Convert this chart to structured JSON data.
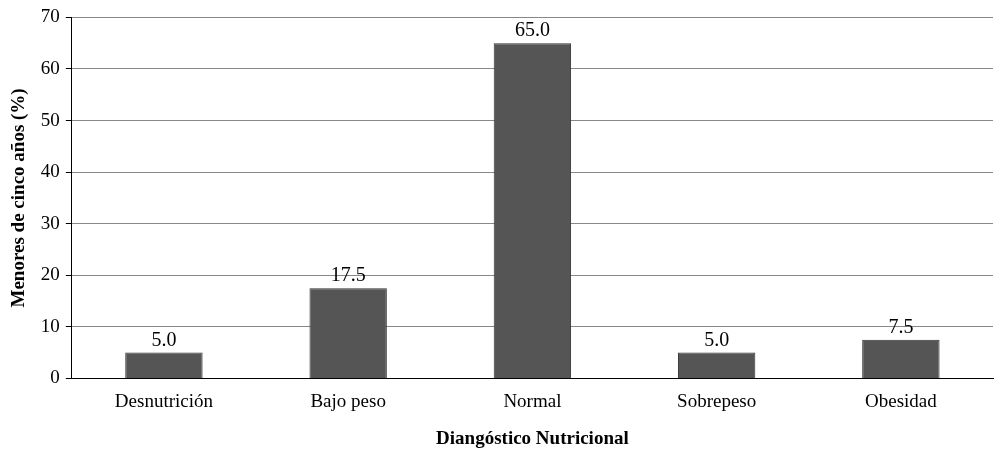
{
  "chart_data": {
    "type": "bar",
    "xlabel": "Diangóstico Nutricional",
    "ylabel": "Menores de cinco años (%)",
    "categories": [
      "Desnutrición",
      "Bajo peso",
      "Normal",
      "Sobrepeso",
      "Obesidad"
    ],
    "values": [
      5.0,
      17.5,
      65.0,
      5.0,
      7.5
    ],
    "value_labels": [
      "5.0",
      "17.5",
      "65.0",
      "5.0",
      "7.5"
    ],
    "color": "#555555",
    "ylim": [
      0,
      70
    ],
    "yticks": [
      0,
      10,
      20,
      30,
      40,
      50,
      60,
      70
    ],
    "grid": "y",
    "legend": false
  }
}
